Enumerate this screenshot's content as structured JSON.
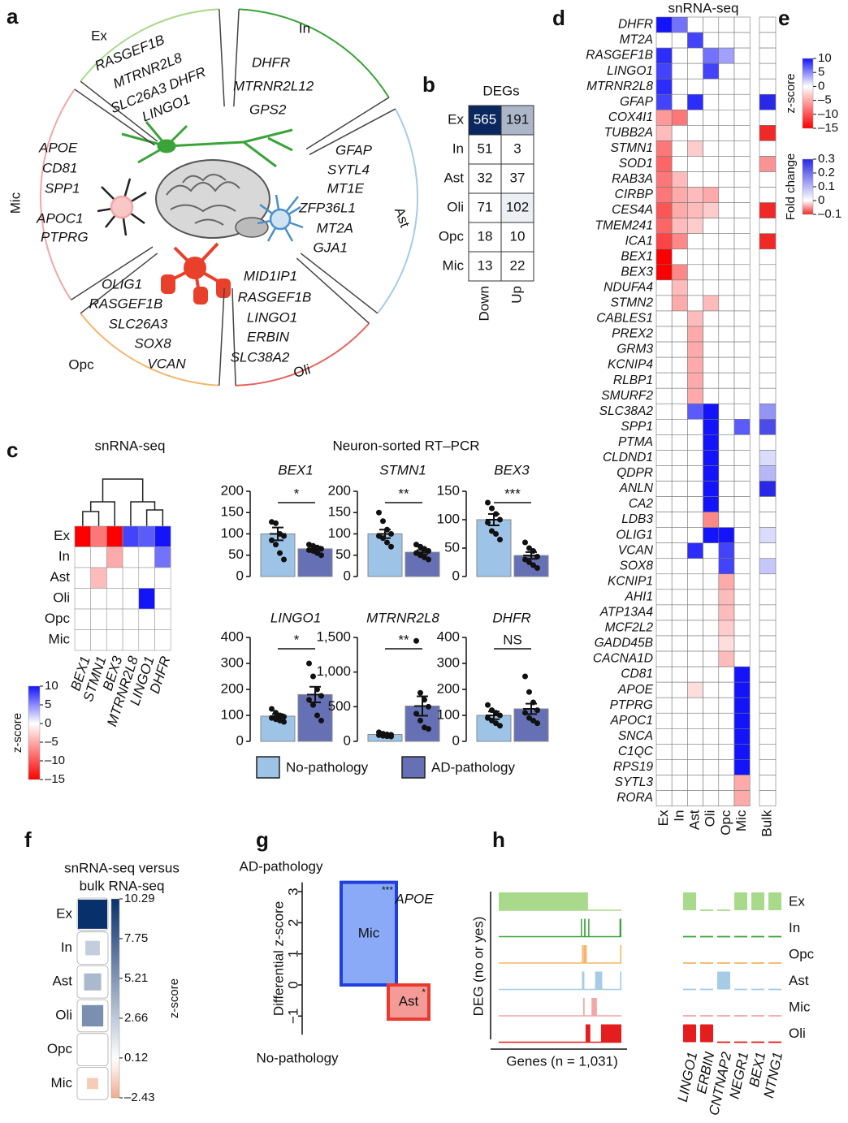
{
  "panel_labels": [
    "a",
    "b",
    "c",
    "d",
    "e",
    "f",
    "g",
    "h"
  ],
  "cell_diagram": {
    "sectors": [
      {
        "name": "Ex",
        "color": "#a9d98b",
        "genes": [
          "RASGEF1B",
          "MTRNR2L8",
          "SLC26A3 DHFR",
          "LINGO1"
        ]
      },
      {
        "name": "In",
        "color": "#3aa339",
        "genes": [
          "DHFR",
          "MTRNR2L12",
          "GPS2"
        ]
      },
      {
        "name": "Ast",
        "color": "#a6cbe6",
        "genes": [
          "GFAP",
          "SYTL4",
          "MT1E",
          "ZFP36L1",
          "MT2A",
          "GJA1"
        ]
      },
      {
        "name": "Oli",
        "color": "#e8605a",
        "genes": [
          "MID1IP1",
          "RASGEF1B",
          "LINGO1",
          "ERBIN",
          "SLC38A2"
        ]
      },
      {
        "name": "Opc",
        "color": "#f4b56a",
        "genes": [
          "OLIG1",
          "RASGEF1B",
          "SLC26A3",
          "SOX8",
          "VCAN"
        ]
      },
      {
        "name": "Mic",
        "color": "#f4a6a6",
        "genes": [
          "APOE",
          "CD81",
          "SPP1",
          "APOC1",
          "PTPRG"
        ]
      }
    ]
  },
  "deg_table": {
    "title": "DEGs",
    "columns": [
      "Down",
      "Up"
    ],
    "rows": [
      "Ex",
      "In",
      "Ast",
      "Oli",
      "Opc",
      "Mic"
    ],
    "values": [
      [
        565,
        191
      ],
      [
        51,
        3
      ],
      [
        32,
        37
      ],
      [
        71,
        102
      ],
      [
        18,
        10
      ],
      [
        13,
        22
      ]
    ]
  },
  "chart_data": [
    {
      "type": "heatmap",
      "title": "snRNA-seq",
      "rows": [
        "Ex",
        "In",
        "Ast",
        "Oli",
        "Opc",
        "Mic"
      ],
      "columns": [
        "BEX1",
        "STMN1",
        "BEX3",
        "MTRNR2L8",
        "LINGO1",
        "DHFR"
      ],
      "values": [
        [
          -15,
          -8,
          -15,
          8,
          7,
          10
        ],
        [
          0,
          0,
          -5,
          0,
          0,
          6
        ],
        [
          0,
          -4,
          0,
          0,
          0,
          0
        ],
        [
          0,
          0,
          0,
          0,
          10,
          0
        ],
        [
          0,
          0,
          0,
          0,
          0,
          0
        ],
        [
          0,
          0,
          0,
          0,
          0,
          0
        ]
      ],
      "colorbar": {
        "label": "z-score",
        "lim": [
          -15,
          10
        ],
        "ticks": [
          10,
          5,
          0,
          {
            "value": -5,
            "label": "–5"
          },
          {
            "value": -10,
            "label": "–10"
          },
          {
            "value": -15,
            "label": "–15"
          }
        ]
      }
    },
    {
      "type": "dot_bar",
      "title": "Neuron-sorted RT–PCR",
      "legend": [
        "No-pathology",
        "AD-pathology"
      ],
      "colors": [
        "#9dc3e6",
        "#6670b5"
      ],
      "panels": [
        {
          "title": "BEX1",
          "significance": "*",
          "means": [
            100,
            65
          ],
          "errors": [
            15,
            5
          ],
          "points": [
            [
              128,
              125,
              100,
              95,
              85,
              75,
              55,
              40
            ],
            [
              75,
              72,
              68,
              65,
              62,
              60,
              55,
              50
            ]
          ],
          "ylim": [
            0,
            200
          ],
          "yticks": [
            0,
            50,
            100,
            150,
            200
          ]
        },
        {
          "title": "STMN1",
          "significance": "**",
          "means": [
            100,
            57
          ],
          "errors": [
            10,
            5
          ],
          "points": [
            [
              150,
              130,
              110,
              100,
              95,
              90,
              80,
              70
            ],
            [
              75,
              70,
              65,
              60,
              55,
              50,
              45,
              40
            ]
          ],
          "ylim": [
            0,
            200
          ],
          "yticks": [
            0,
            50,
            100,
            150,
            200
          ]
        },
        {
          "title": "BEX3",
          "significance": "***",
          "means": [
            100,
            37
          ],
          "errors": [
            10,
            6
          ],
          "points": [
            [
              130,
              120,
              110,
              100,
              95,
              80,
              75,
              65
            ],
            [
              60,
              50,
              45,
              35,
              30,
              25,
              20,
              15
            ]
          ],
          "ylim": [
            0,
            150
          ],
          "yticks": [
            0,
            50,
            100,
            150
          ]
        },
        {
          "title": "LINGO1",
          "significance": "*",
          "means": [
            97,
            180
          ],
          "errors": [
            8,
            30
          ],
          "points": [
            [
              125,
              110,
              100,
              95,
              90,
              85,
              80,
              75
            ],
            [
              300,
              250,
              200,
              175,
              160,
              140,
              100,
              80
            ]
          ],
          "ylim": [
            0,
            400
          ],
          "yticks": [
            0,
            100,
            200,
            300,
            400
          ]
        },
        {
          "title": "MTRNR2L8",
          "significance": "**",
          "means": [
            100,
            510
          ],
          "errors": [
            10,
            140
          ],
          "points": [
            [
              130,
              110,
              100,
              95,
              90,
              80,
              75,
              70
            ],
            [
              1450,
              700,
              600,
              500,
              400,
              300,
              200,
              180
            ]
          ],
          "ylim": [
            0,
            1500
          ],
          "yticks": [
            0,
            500,
            {
              "value": 1000,
              "label": "1,000"
            },
            {
              "value": 1500,
              "label": "1,500"
            }
          ]
        },
        {
          "title": "DHFR",
          "significance": "NS",
          "means": [
            100,
            125
          ],
          "errors": [
            15,
            20
          ],
          "points": [
            [
              140,
              120,
              110,
              100,
              90,
              80,
              70,
              60
            ],
            [
              250,
              190,
              150,
              120,
              110,
              90,
              80,
              70
            ]
          ],
          "ylim": [
            0,
            400
          ],
          "yticks": [
            0,
            100,
            200,
            300,
            400
          ]
        }
      ]
    },
    {
      "type": "heatmap",
      "title": "snRNA-seq",
      "rows": [
        "DHFR",
        "MT2A",
        "RASGEF1B",
        "LINGO1",
        "MTRNR2L8",
        "GFAP",
        "COX4I1",
        "TUBB2A",
        "STMN1",
        "SOD1",
        "RAB3A",
        "CIRBP",
        "CES4A",
        "TMEM241",
        "ICA1",
        "BEX1",
        "BEX3",
        "NDUFA4",
        "STMN2",
        "CABLES1",
        "PREX2",
        "GRM3",
        "KCNIP4",
        "RLBP1",
        "SMURF2",
        "SLC38A2",
        "SPP1",
        "PTMA",
        "CLDND1",
        "QDPR",
        "ANLN",
        "CA2",
        "LDB3",
        "OLIG1",
        "VCAN",
        "SOX8",
        "KCNIP1",
        "AHI1",
        "ATP13A4",
        "MCF2L2",
        "GADD45B",
        "CACNA1D",
        "CD81",
        "APOE",
        "PTPRG",
        "APOC1",
        "SNCA",
        "C1QC",
        "RPS19",
        "SYTL3",
        "RORA"
      ],
      "columns": [
        "Ex",
        "In",
        "Ast",
        "Oli",
        "Opc",
        "Mic"
      ],
      "values": [
        [
          10,
          6,
          0,
          0,
          0,
          0
        ],
        [
          0,
          0,
          8,
          0,
          0,
          0
        ],
        [
          9,
          0,
          0,
          6,
          4,
          0
        ],
        [
          8,
          0,
          0,
          8,
          0,
          0
        ],
        [
          9,
          0,
          0,
          0,
          0,
          0
        ],
        [
          8,
          0,
          9,
          0,
          0,
          0
        ],
        [
          -6,
          -8,
          0,
          0,
          0,
          0
        ],
        [
          -4,
          0,
          0,
          0,
          0,
          0
        ],
        [
          -8,
          0,
          -3,
          0,
          0,
          0
        ],
        [
          -9,
          0,
          0,
          0,
          0,
          0
        ],
        [
          -8,
          -4,
          0,
          0,
          0,
          0
        ],
        [
          -8,
          -5,
          -4,
          -5,
          0,
          0
        ],
        [
          -10,
          -5,
          -4,
          -3,
          0,
          0
        ],
        [
          -9,
          -4,
          -3,
          0,
          0,
          0
        ],
        [
          -11,
          -7,
          0,
          0,
          0,
          0
        ],
        [
          -15,
          0,
          0,
          0,
          0,
          0
        ],
        [
          -15,
          -7,
          0,
          0,
          0,
          0
        ],
        [
          0,
          -4,
          0,
          0,
          0,
          0
        ],
        [
          0,
          -5,
          0,
          -4,
          0,
          0
        ],
        [
          0,
          0,
          -4,
          0,
          0,
          0
        ],
        [
          0,
          0,
          -5,
          0,
          0,
          0
        ],
        [
          0,
          0,
          -5,
          0,
          0,
          0
        ],
        [
          0,
          0,
          -5,
          0,
          0,
          0
        ],
        [
          0,
          0,
          -5,
          0,
          0,
          0
        ],
        [
          0,
          0,
          -5,
          0,
          0,
          0
        ],
        [
          0,
          0,
          7,
          10,
          0,
          0
        ],
        [
          0,
          0,
          0,
          10,
          0,
          7
        ],
        [
          0,
          0,
          0,
          10,
          0,
          0
        ],
        [
          0,
          0,
          0,
          10,
          0,
          0
        ],
        [
          0,
          0,
          0,
          10,
          0,
          0
        ],
        [
          0,
          0,
          0,
          10,
          0,
          0
        ],
        [
          0,
          0,
          0,
          10,
          0,
          0
        ],
        [
          0,
          0,
          0,
          -7,
          0,
          0
        ],
        [
          0,
          0,
          0,
          10,
          10,
          0
        ],
        [
          0,
          0,
          9,
          0,
          8,
          0
        ],
        [
          0,
          0,
          0,
          0,
          8,
          0
        ],
        [
          0,
          0,
          0,
          0,
          -5,
          0
        ],
        [
          0,
          0,
          0,
          0,
          -4,
          0
        ],
        [
          0,
          0,
          0,
          0,
          -4,
          0
        ],
        [
          0,
          0,
          0,
          0,
          -3,
          0
        ],
        [
          0,
          0,
          0,
          0,
          -2,
          0
        ],
        [
          0,
          0,
          0,
          0,
          -4,
          0
        ],
        [
          0,
          0,
          0,
          0,
          0,
          10
        ],
        [
          0,
          0,
          -2,
          0,
          0,
          10
        ],
        [
          0,
          0,
          0,
          0,
          0,
          10
        ],
        [
          0,
          0,
          0,
          0,
          0,
          10
        ],
        [
          0,
          0,
          0,
          0,
          0,
          10
        ],
        [
          0,
          0,
          0,
          0,
          0,
          10
        ],
        [
          0,
          0,
          0,
          0,
          0,
          10
        ],
        [
          0,
          0,
          0,
          0,
          0,
          -5
        ],
        [
          0,
          0,
          0,
          0,
          0,
          -5
        ]
      ],
      "bulk": {
        "label": "Bulk",
        "values": [
          0,
          0,
          0,
          0,
          0,
          0.3,
          0,
          -0.1,
          0,
          -0.05,
          0,
          0,
          -0.1,
          0,
          -0.1,
          0,
          0,
          0,
          0,
          0,
          0,
          0,
          0,
          0,
          0,
          0.15,
          0.25,
          0,
          0.05,
          0.1,
          0.3,
          0,
          0,
          0.05,
          0,
          0.08,
          0,
          0,
          0,
          0,
          0,
          0,
          0,
          0,
          0,
          0,
          0,
          0,
          0,
          0,
          0
        ]
      },
      "colorbars": [
        {
          "label": "z-score",
          "lim": [
            -15,
            10
          ],
          "ticks": [
            10,
            5,
            0,
            {
              "value": -5,
              "label": "–5"
            },
            {
              "value": -10,
              "label": "–10"
            },
            {
              "value": -15,
              "label": "–15"
            }
          ]
        },
        {
          "label": "Fold change",
          "lim": [
            -0.1,
            0.3
          ],
          "ticks": [
            0.3,
            0.2,
            0.1,
            0,
            {
              "value": -0.1,
              "label": "–0.1"
            }
          ]
        }
      ]
    },
    {
      "type": "square_heatmap",
      "title_lines": [
        "snRNA-seq versus",
        "bulk RNA-seq"
      ],
      "rows": [
        "Ex",
        "In",
        "Ast",
        "Oli",
        "Opc",
        "Mic"
      ],
      "values": [
        10.29,
        2.5,
        3.5,
        5.5,
        0,
        -1.5
      ],
      "colorbar": {
        "label": "z-score",
        "lim": [
          -2.43,
          10.29
        ],
        "ticks": [
          10.29,
          7.75,
          5.21,
          2.66,
          0.12,
          {
            "value": -2.43,
            "label": "–2.43"
          }
        ]
      }
    },
    {
      "type": "bar",
      "top_label": "AD-pathology",
      "bottom_label": "No-pathology",
      "ylabel": "Differential z-score",
      "annotation": "APOE",
      "categories": [
        "Mic",
        "Ast"
      ],
      "values": [
        3.3,
        -1.1
      ],
      "colors": [
        "#1f3fe0",
        "#e83a2f"
      ],
      "significance": [
        "***",
        "*"
      ],
      "ylim": [
        -1.6,
        3.3
      ],
      "yticks": [
        {
          "value": -1,
          "label": "−1"
        },
        0,
        1,
        2,
        3
      ]
    },
    {
      "type": "tracks",
      "ylabel": "DEG (no or yes)",
      "xlabel": "Genes (n = 1,031)",
      "xlim": [
        0,
        1031
      ],
      "tracks": [
        {
          "name": "Ex",
          "color": "#a9d98b",
          "intervals": [
            [
              0,
              750
            ]
          ]
        },
        {
          "name": "In",
          "color": "#3aa339",
          "intervals": [
            [
              690,
              700
            ],
            [
              718,
              730
            ],
            [
              752,
              762
            ],
            [
              1015,
              1031
            ]
          ]
        },
        {
          "name": "Opc",
          "color": "#f4b56a",
          "intervals": [
            [
              700,
              705
            ],
            [
              712,
              716
            ],
            [
              720,
              724
            ],
            [
              730,
              740
            ],
            [
              1020,
              1031
            ]
          ]
        },
        {
          "name": "Ast",
          "color": "#a6cbe6",
          "intervals": [
            [
              700,
              720
            ],
            [
              810,
              870
            ],
            [
              1020,
              1031
            ]
          ]
        },
        {
          "name": "Mic",
          "color": "#f4a6a6",
          "intervals": [
            [
              710,
              722
            ],
            [
              780,
              825
            ]
          ]
        },
        {
          "name": "Oli",
          "color": "#e41e1e",
          "intervals": [
            [
              730,
              770
            ],
            [
              860,
              1031
            ]
          ]
        }
      ],
      "genes": [
        "LINGO1",
        "ERBIN",
        "CNTNAP2",
        "NEGR1",
        "BEX1",
        "NTNG1"
      ],
      "gene_deg": [
        [
          1,
          0,
          0,
          1,
          1,
          1
        ],
        [
          0,
          0,
          0,
          0,
          0,
          0
        ],
        [
          0,
          0,
          0,
          0,
          0,
          0
        ],
        [
          0,
          0,
          1,
          0,
          0,
          0
        ],
        [
          0,
          0,
          0,
          0,
          0,
          0
        ],
        [
          1,
          1,
          0,
          0,
          0,
          0
        ]
      ]
    }
  ]
}
